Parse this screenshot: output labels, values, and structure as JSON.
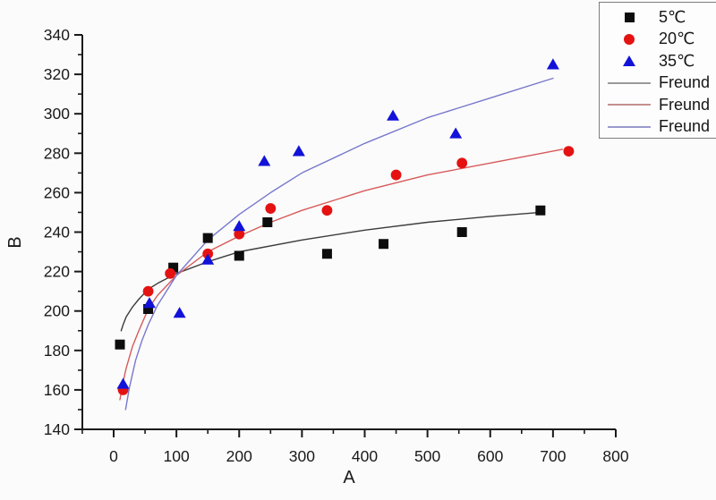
{
  "figure": {
    "background": "#fbfbfb"
  },
  "chart_data": {
    "type": "scatter",
    "title": "",
    "xlabel": "A",
    "ylabel": "B",
    "xlim": [
      -50,
      800
    ],
    "ylim": [
      140,
      340
    ],
    "x_ticks": [
      0,
      100,
      200,
      300,
      400,
      500,
      600,
      700,
      800
    ],
    "y_ticks": [
      140,
      160,
      180,
      200,
      220,
      240,
      260,
      280,
      300,
      320,
      340
    ],
    "x_minor_step": 50,
    "y_minor_step": 10,
    "grid": false,
    "legend_position": "top-right",
    "axis_color": "#1a1a1a",
    "series": [
      {
        "name": "5℃",
        "marker": "square",
        "color": "#0d0d0d",
        "points": [
          [
            10,
            183
          ],
          [
            55,
            201
          ],
          [
            95,
            222
          ],
          [
            150,
            237
          ],
          [
            200,
            228
          ],
          [
            245,
            245
          ],
          [
            340,
            229
          ],
          [
            430,
            234
          ],
          [
            555,
            240
          ],
          [
            680,
            251
          ]
        ]
      },
      {
        "name": "20℃",
        "marker": "circle",
        "color": "#e51212",
        "points": [
          [
            15,
            160
          ],
          [
            55,
            210
          ],
          [
            90,
            219
          ],
          [
            150,
            229
          ],
          [
            200,
            239
          ],
          [
            250,
            252
          ],
          [
            340,
            251
          ],
          [
            450,
            269
          ],
          [
            555,
            275
          ],
          [
            725,
            281
          ]
        ]
      },
      {
        "name": "35℃",
        "marker": "triangle",
        "color": "#1212d9",
        "points": [
          [
            15,
            163
          ],
          [
            57,
            204
          ],
          [
            105,
            199
          ],
          [
            150,
            226
          ],
          [
            200,
            243
          ],
          [
            240,
            276
          ],
          [
            295,
            281
          ],
          [
            445,
            299
          ],
          [
            545,
            290
          ],
          [
            700,
            325
          ]
        ]
      }
    ],
    "fits": [
      {
        "name": "Freund",
        "color": "#3c3c3c",
        "legend_color": "#9a9a9a",
        "points": [
          [
            12,
            190
          ],
          [
            15,
            193
          ],
          [
            20,
            197
          ],
          [
            30,
            202
          ],
          [
            40,
            206
          ],
          [
            55,
            211
          ],
          [
            70,
            214
          ],
          [
            100,
            219
          ],
          [
            150,
            225
          ],
          [
            200,
            230
          ],
          [
            300,
            236
          ],
          [
            400,
            241
          ],
          [
            500,
            245
          ],
          [
            600,
            248
          ],
          [
            680,
            250
          ]
        ]
      },
      {
        "name": "Freund",
        "color": "#d75a5a",
        "legend_color": "#c49090",
        "points": [
          [
            10,
            155
          ],
          [
            15,
            164
          ],
          [
            20,
            171
          ],
          [
            30,
            182
          ],
          [
            40,
            190
          ],
          [
            55,
            201
          ],
          [
            70,
            208
          ],
          [
            100,
            218
          ],
          [
            150,
            230
          ],
          [
            200,
            238
          ],
          [
            250,
            245
          ],
          [
            300,
            251
          ],
          [
            400,
            261
          ],
          [
            500,
            269
          ],
          [
            600,
            275
          ],
          [
            715,
            282
          ]
        ]
      },
      {
        "name": "Freund",
        "color": "#7878cd",
        "legend_color": "#9a9ace",
        "points": [
          [
            19,
            150
          ],
          [
            25,
            161
          ],
          [
            35,
            175
          ],
          [
            45,
            185
          ],
          [
            55,
            193
          ],
          [
            70,
            203
          ],
          [
            100,
            218
          ],
          [
            150,
            236
          ],
          [
            200,
            249
          ],
          [
            250,
            260
          ],
          [
            300,
            270
          ],
          [
            400,
            285
          ],
          [
            500,
            298
          ],
          [
            600,
            308
          ],
          [
            700,
            318
          ]
        ]
      }
    ]
  }
}
